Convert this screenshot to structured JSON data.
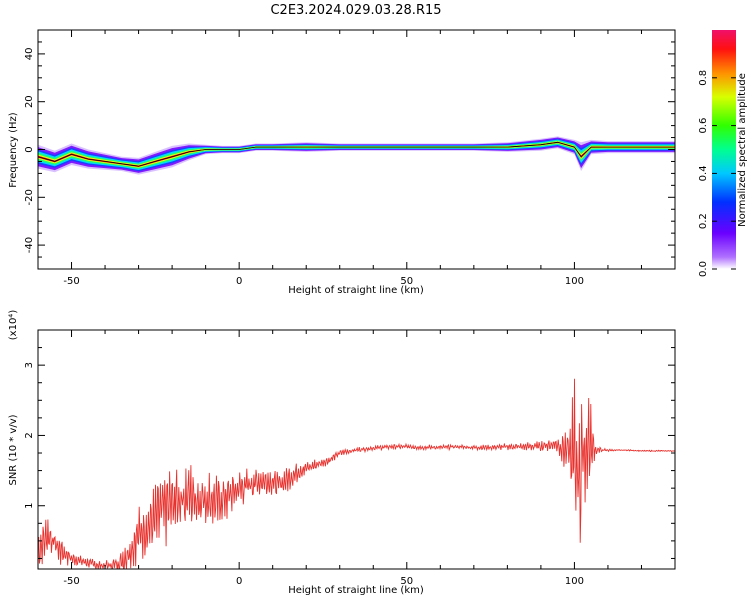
{
  "title": "C2E3.2024.029.03.28.R15",
  "chart_data": [
    {
      "type": "heatmap",
      "xlabel": "Height of straight line (km)",
      "ylabel": "Frequency (Hz)",
      "xlim": [
        -60,
        130
      ],
      "ylim": [
        -50,
        50
      ],
      "xticks": [
        -50,
        0,
        50,
        100
      ],
      "yticks": [
        -40,
        -20,
        0,
        20,
        40
      ],
      "colorbar": {
        "label": "Normalized spectral amplitude",
        "range": [
          0.0,
          1.0
        ],
        "ticks": [
          "0.0",
          "0.2",
          "0.4",
          "0.6",
          "0.8"
        ],
        "colormap": "rainbow"
      },
      "ridge": {
        "x": [
          -60,
          -55,
          -50,
          -45,
          -40,
          -35,
          -30,
          -25,
          -20,
          -15,
          -10,
          -5,
          0,
          5,
          10,
          20,
          30,
          40,
          50,
          60,
          70,
          80,
          90,
          95,
          100,
          102,
          105,
          110,
          120,
          130
        ],
        "y": [
          -3,
          -5,
          -2,
          -4,
          -5,
          -6,
          -7,
          -5,
          -3,
          -1,
          0,
          0,
          0,
          1,
          1,
          1,
          1,
          1,
          1,
          1,
          1,
          1,
          2,
          3,
          1,
          -3,
          1,
          1,
          1,
          1
        ],
        "width": [
          10,
          9,
          9,
          8,
          7,
          6,
          7,
          8,
          9,
          7,
          4,
          3,
          3,
          3,
          3,
          4,
          3,
          3,
          3,
          3,
          3,
          4,
          5,
          5,
          6,
          12,
          6,
          5,
          5,
          5
        ]
      }
    },
    {
      "type": "line",
      "xlabel": "Height of straight line (km)",
      "ylabel": "SNR (10 * v/v)",
      "yscale_label": "(x10⁴)",
      "xlim": [
        -60,
        130
      ],
      "ylim": [
        0.1,
        3.5
      ],
      "xticks": [
        -50,
        0,
        50,
        100
      ],
      "yticks": [
        1,
        2,
        3
      ],
      "color": "#e8302c",
      "series": [
        {
          "x": [
            -60,
            -57,
            -54,
            -50,
            -46,
            -42,
            -38,
            -35,
            -32,
            -30,
            -27,
            -24,
            -21,
            -18,
            -15,
            -12,
            -9,
            -6,
            -3,
            0,
            3,
            6,
            9,
            12,
            15,
            18,
            21,
            24,
            27,
            30,
            33,
            36,
            40,
            45,
            50,
            55,
            60,
            65,
            70,
            75,
            80,
            85,
            90,
            95,
            98,
            100,
            101,
            102,
            103,
            104,
            105,
            106,
            108,
            112,
            116,
            120,
            125,
            130
          ],
          "y": [
            0.35,
            0.6,
            0.4,
            0.25,
            0.2,
            0.15,
            0.15,
            0.2,
            0.4,
            0.6,
            0.7,
            0.9,
            1.0,
            1.1,
            1.15,
            1.1,
            1.1,
            1.05,
            1.15,
            1.25,
            1.3,
            1.35,
            1.35,
            1.3,
            1.4,
            1.5,
            1.55,
            1.6,
            1.65,
            1.75,
            1.78,
            1.8,
            1.82,
            1.84,
            1.84,
            1.83,
            1.83,
            1.84,
            1.83,
            1.83,
            1.84,
            1.84,
            1.85,
            1.88,
            1.75,
            1.7,
            1.6,
            1.5,
            1.8,
            1.9,
            1.85,
            1.8,
            1.79,
            1.79,
            1.79,
            1.78,
            1.78,
            1.78
          ],
          "amplitude": [
            0.3,
            0.35,
            0.3,
            0.1,
            0.08,
            0.08,
            0.1,
            0.2,
            0.35,
            0.4,
            0.45,
            0.55,
            0.6,
            0.6,
            0.55,
            0.5,
            0.45,
            0.4,
            0.35,
            0.3,
            0.25,
            0.25,
            0.2,
            0.2,
            0.2,
            0.15,
            0.1,
            0.08,
            0.06,
            0.05,
            0.05,
            0.04,
            0.04,
            0.04,
            0.04,
            0.04,
            0.04,
            0.04,
            0.04,
            0.04,
            0.05,
            0.06,
            0.08,
            0.15,
            0.4,
            1.2,
            1.6,
            1.5,
            1.4,
            1.2,
            0.6,
            0.15,
            0.03,
            0.01,
            0.01,
            0.01,
            0.01,
            0.01
          ]
        }
      ]
    }
  ]
}
